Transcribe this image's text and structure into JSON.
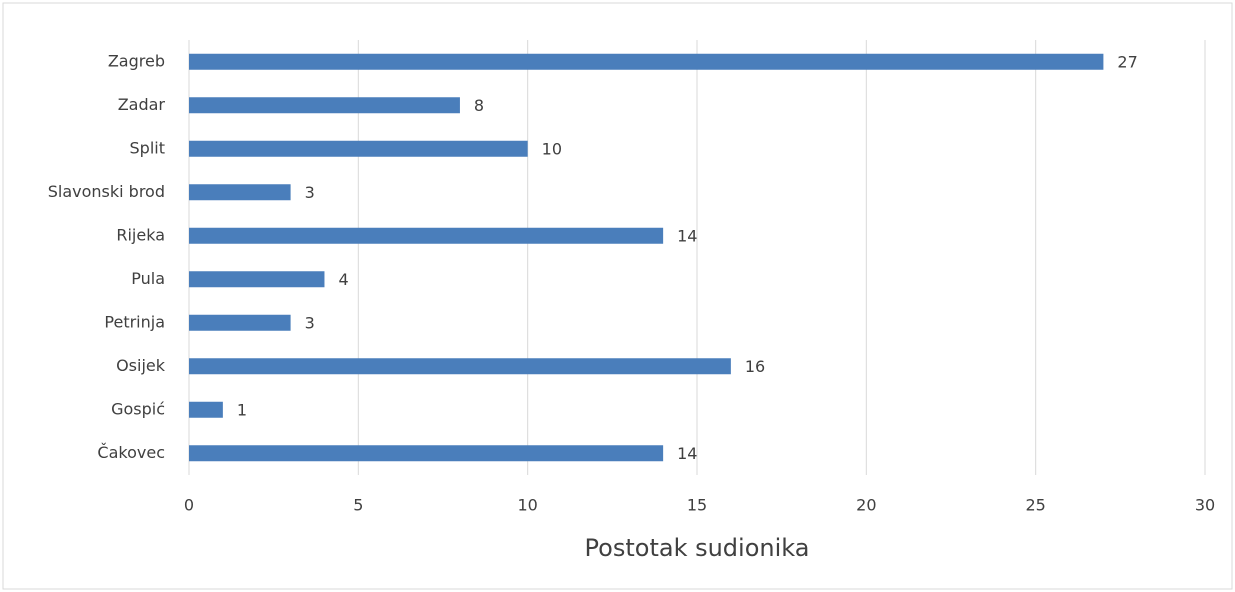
{
  "chart_data": {
    "type": "bar",
    "orientation": "horizontal",
    "x_label": "Postotak sudionika",
    "categories": [
      "Zagreb",
      "Zadar",
      "Split",
      "Slavonski brod",
      "Rijeka",
      "Pula",
      "Petrinja",
      "Osijek",
      "Gospić",
      "Čakovec"
    ],
    "values": [
      27,
      8,
      10,
      3,
      14,
      4,
      3,
      16,
      1,
      14
    ],
    "color": "#4a7ebb",
    "xlim": [
      0,
      30
    ],
    "xticks": [
      0,
      5,
      10,
      15,
      20,
      25,
      30
    ],
    "grid": true
  }
}
